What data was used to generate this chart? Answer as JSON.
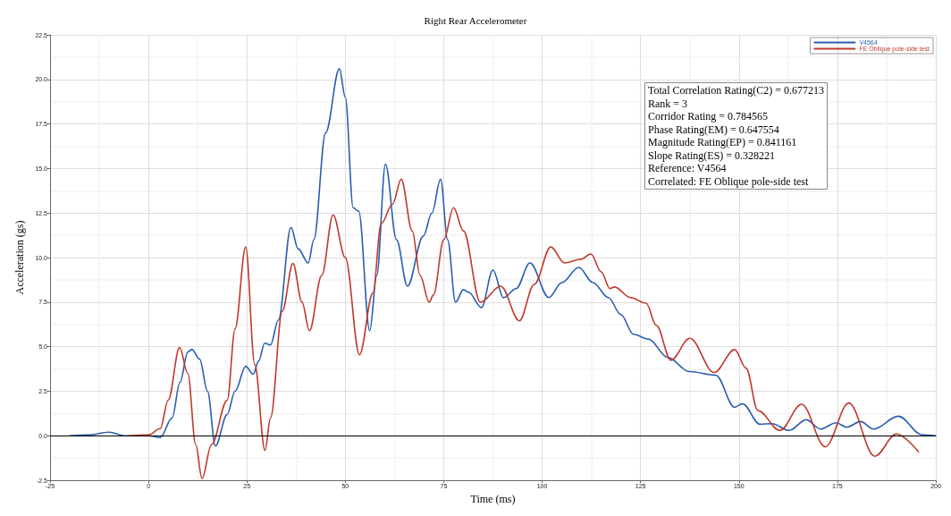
{
  "chart_data": {
    "type": "line",
    "title": "Right Rear Accelerometer",
    "xlabel": "Time (ms)",
    "ylabel": "Acceleration (gs)",
    "xlim": [
      -25,
      200
    ],
    "xticks": [
      -25,
      0,
      25,
      50,
      75,
      100,
      125,
      150,
      175,
      200
    ],
    "ylim": [
      -2.5,
      22.5
    ],
    "yticks": [
      {
        "value": -2.5,
        "label": "-2.5"
      },
      {
        "value": 0,
        "label": "0.0"
      },
      {
        "value": 2.5,
        "label": "2.5"
      },
      {
        "value": 5,
        "label": "5.0"
      },
      {
        "value": 7.5,
        "label": "7.5"
      },
      {
        "value": 10,
        "label": "10.0"
      },
      {
        "value": 12.5,
        "label": "12.5"
      },
      {
        "value": 15,
        "label": "15.0"
      },
      {
        "value": 17.5,
        "label": "17.5"
      },
      {
        "value": 20,
        "label": "20.0"
      },
      {
        "value": 22.5,
        "label": "22.5"
      }
    ],
    "grid": true,
    "legend": "top right",
    "marker": "none",
    "line_style": "solid",
    "ref_lines": [
      {
        "axis": "y",
        "value": 0,
        "color": "#000000"
      }
    ],
    "annotations": [
      "Total Correlation Rating(C2) = 0.677213",
      "Rank = 3",
      "Corridor Rating = 0.784565",
      "Phase Rating(EM) = 0.647554",
      "Magnitude Rating(EP) = 0.841161",
      "Slope Rating(ES) = 0.328221",
      "Reference: V4564",
      "Correlated: FE Oblique pole-side test"
    ],
    "series": [
      {
        "name": "V4564",
        "color": "#2a5db0",
        "x": [
          -20,
          -15,
          -10,
          -6,
          -3,
          0,
          3,
          6,
          8,
          10,
          11,
          13,
          15,
          17,
          20,
          22,
          24.7,
          26.6,
          28,
          29.5,
          31,
          33,
          36.2,
          38,
          40.6,
          42,
          45,
          48.5,
          50,
          52,
          53.4,
          56.2,
          58,
          60.2,
          63,
          65.8,
          69.8,
          72,
          74.2,
          76,
          78,
          80,
          81.3,
          84.6,
          87.5,
          90.2,
          93.4,
          96.9,
          101.7,
          105,
          109.3,
          112.9,
          116.8,
          120,
          123.2,
          127,
          131.9,
          137.4,
          144.1,
          148.9,
          150.9,
          155.3,
          158.4,
          162.7,
          167.1,
          170.7,
          174.7,
          177.4,
          180.9,
          184.2,
          190.5,
          196.5,
          200
        ],
        "values": [
          0,
          0.05,
          0.2,
          0,
          0,
          0,
          -0.1,
          1,
          3,
          4.7,
          4.85,
          4.3,
          2.5,
          -0.57,
          1.2,
          2.5,
          3.9,
          3.45,
          4.2,
          5.2,
          5.1,
          6.5,
          11.7,
          10.5,
          9.7,
          11,
          17,
          20.6,
          19,
          12.8,
          12.6,
          5.9,
          9,
          15.25,
          11,
          8.4,
          11.2,
          12.5,
          14.4,
          11,
          7.5,
          8.2,
          8.06,
          7.2,
          9.3,
          7.75,
          8.26,
          9.7,
          7.76,
          8.6,
          9.45,
          8.6,
          7.76,
          6.8,
          5.7,
          5.43,
          4.4,
          3.6,
          3.4,
          1.6,
          1.8,
          0.65,
          0.68,
          0.3,
          0.9,
          0.38,
          0.73,
          0.48,
          0.8,
          0.38,
          1.1,
          0.05,
          0
        ]
      },
      {
        "name": "FE Oblique pole-side test",
        "color": "#c0392b",
        "x": [
          -5,
          0,
          3,
          5,
          7.9,
          10,
          12,
          13.6,
          16,
          20,
          22,
          24.7,
          27,
          29.6,
          31,
          34,
          36.7,
          39,
          40.9,
          44,
          46.9,
          50,
          53.6,
          57,
          59.1,
          62,
          64.2,
          67,
          69,
          71.3,
          72.4,
          75,
          77.5,
          80,
          84.3,
          89.5,
          94.2,
          98,
          102.2,
          105.7,
          109.7,
          112.4,
          115,
          117.2,
          118.4,
          122.4,
          126.4,
          129,
          132.7,
          137.5,
          143.7,
          148.9,
          151.8,
          154.8,
          160.4,
          165.9,
          171.9,
          177.9,
          184.5,
          190,
          195.6
        ],
        "values": [
          0,
          0.05,
          0.4,
          2,
          4.95,
          3.5,
          -0.5,
          -2.4,
          -0.5,
          2,
          6,
          10.6,
          4,
          -0.82,
          1,
          7,
          9.67,
          7.5,
          5.9,
          9,
          12.4,
          10,
          4.55,
          8,
          11.9,
          13,
          14.4,
          11.5,
          9,
          7.5,
          7.9,
          11,
          12.8,
          11.5,
          7.5,
          8.4,
          6.45,
          8.5,
          10.6,
          9.7,
          9.9,
          10.2,
          9.2,
          8.26,
          8.35,
          7.76,
          7.44,
          6.2,
          4.24,
          5.47,
          3.55,
          4.84,
          3.8,
          1.42,
          0.3,
          1.77,
          -0.62,
          1.84,
          -1.15,
          0.1,
          -0.9
        ]
      }
    ]
  }
}
